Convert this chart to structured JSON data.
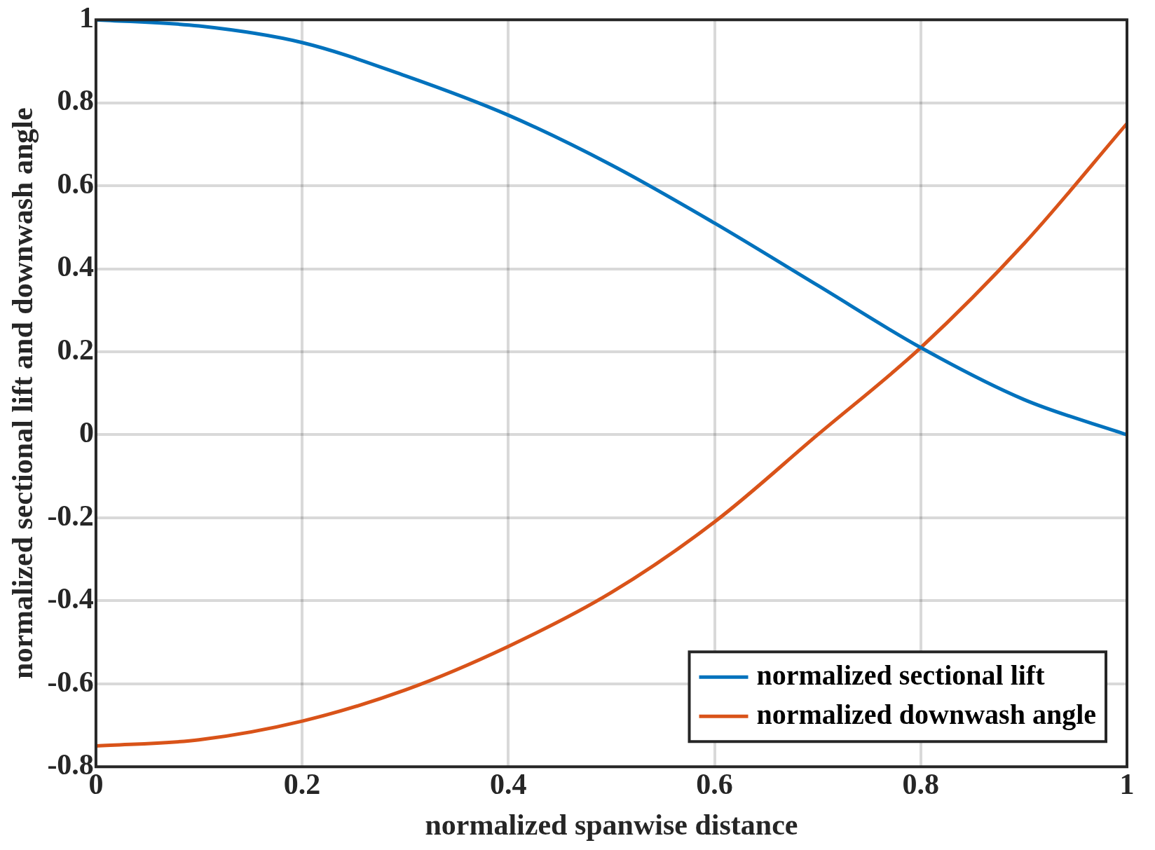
{
  "chart_data": {
    "type": "line",
    "xlabel": "normalized spanwise distance",
    "ylabel": "normalized sectional lift and downwash angle",
    "x": [
      0,
      0.1,
      0.2,
      0.3,
      0.4,
      0.5,
      0.6,
      0.7,
      0.8,
      0.9,
      1
    ],
    "series": [
      {
        "name": "normalized sectional lift",
        "color": "#0072bd",
        "values": [
          1,
          0.985,
          0.945,
          0.865,
          0.77,
          0.65,
          0.51,
          0.36,
          0.21,
          0.085,
          0
        ]
      },
      {
        "name": "normalized downwash angle",
        "color": "#d95319",
        "values": [
          -0.75,
          -0.735,
          -0.69,
          -0.615,
          -0.51,
          -0.38,
          -0.21,
          0,
          0.21,
          0.46,
          0.75
        ]
      }
    ],
    "xlim": [
      0,
      1
    ],
    "xticks": [
      0,
      0.2,
      0.4,
      0.6,
      0.8,
      1
    ],
    "ylim": [
      -0.8,
      1
    ],
    "yticks": [
      -0.8,
      -0.6,
      -0.4,
      -0.2,
      0,
      0.2,
      0.4,
      0.6,
      0.8,
      1
    ],
    "grid": true,
    "legend": "bottom right",
    "marker": "none",
    "line_style": "solid"
  }
}
